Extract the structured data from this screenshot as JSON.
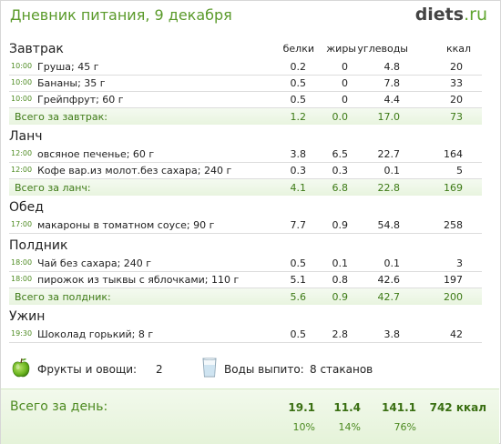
{
  "header": {
    "title": "Дневник питания, 9 декабря",
    "logo_main": "diets",
    "logo_tld": ".ru"
  },
  "columns": {
    "protein": "белки",
    "fat": "жиры",
    "carbs": "углеводы",
    "kcal": "ккал"
  },
  "meals": {
    "breakfast": {
      "title": "Завтрак",
      "items": [
        {
          "time": "10:00",
          "name": "Груша; 45 г",
          "protein": "0.2",
          "fat": "0",
          "carbs": "4.8",
          "kcal": "20"
        },
        {
          "time": "10:00",
          "name": "Бананы; 35 г",
          "protein": "0.5",
          "fat": "0",
          "carbs": "7.8",
          "kcal": "33"
        },
        {
          "time": "10:00",
          "name": "Грейпфрут; 60 г",
          "protein": "0.5",
          "fat": "0",
          "carbs": "4.4",
          "kcal": "20"
        }
      ],
      "total": {
        "label": "Всего за завтрак:",
        "protein": "1.2",
        "fat": "0.0",
        "carbs": "17.0",
        "kcal": "73"
      }
    },
    "lunch": {
      "title": "Ланч",
      "items": [
        {
          "time": "12:00",
          "name": "овсяное печенье; 60 г",
          "protein": "3.8",
          "fat": "6.5",
          "carbs": "22.7",
          "kcal": "164"
        },
        {
          "time": "12:00",
          "name": "Кофе вар.из молот.без сахара; 240 г",
          "protein": "0.3",
          "fat": "0.3",
          "carbs": "0.1",
          "kcal": "5"
        }
      ],
      "total": {
        "label": "Всего за ланч:",
        "protein": "4.1",
        "fat": "6.8",
        "carbs": "22.8",
        "kcal": "169"
      }
    },
    "dinner": {
      "title": "Обед",
      "items": [
        {
          "time": "17:00",
          "name": "макароны в томатном соусе; 90 г",
          "protein": "7.7",
          "fat": "0.9",
          "carbs": "54.8",
          "kcal": "258"
        }
      ]
    },
    "snack": {
      "title": "Полдник",
      "items": [
        {
          "time": "18:00",
          "name": "Чай без сахара; 240 г",
          "protein": "0.5",
          "fat": "0.1",
          "carbs": "0.1",
          "kcal": "3"
        },
        {
          "time": "18:00",
          "name": "пирожок из тыквы с яблочками; 110 г",
          "protein": "5.1",
          "fat": "0.8",
          "carbs": "42.6",
          "kcal": "197"
        }
      ],
      "total": {
        "label": "Всего за полдник:",
        "protein": "5.6",
        "fat": "0.9",
        "carbs": "42.7",
        "kcal": "200"
      }
    },
    "supper": {
      "title": "Ужин",
      "items": [
        {
          "time": "19:30",
          "name": "Шоколад горький; 8 г",
          "protein": "0.5",
          "fat": "2.8",
          "carbs": "3.8",
          "kcal": "42"
        }
      ]
    }
  },
  "extras": {
    "fruit_label": "Фрукты и овощи:",
    "fruit_value": "2",
    "water_label": "Воды выпито:",
    "water_value": "8 стаканов",
    "icons": [
      "apple-icon",
      "water-glass-icon"
    ]
  },
  "day_total": {
    "label": "Всего за день:",
    "protein": "19.1",
    "fat": "11.4",
    "carbs": "141.1",
    "kcal": "742 ккал",
    "protein_pct": "10%",
    "fat_pct": "14%",
    "carbs_pct": "76%"
  },
  "colors": {
    "accent_green": "#5a9a2a",
    "total_green": "#3d7a16"
  }
}
